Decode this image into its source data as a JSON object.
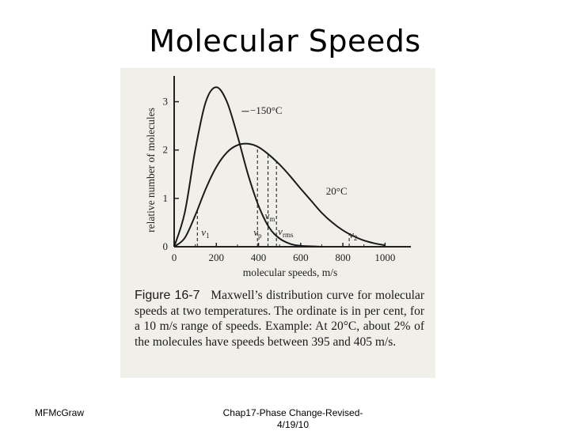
{
  "slide": {
    "title": "Molecular Speeds",
    "footer_left": "MFMcGraw",
    "footer_center": "Chap17-Phase Change-Revised-4/19/10"
  },
  "caption": {
    "figure_label": "Figure 16-7",
    "text": "Maxwell’s distribution curve for molecular speeds at two temperatures. The ordinate is in per cent, for a 10 m/s range of speeds. Example: At 20°C, about 2% of the molecules have speeds between 395 and 405 m/s."
  },
  "chart_data": {
    "type": "line",
    "title": "",
    "xlabel": "molecular speeds, m/s",
    "ylabel": "relative number of molecules",
    "xlim": [
      0,
      1100
    ],
    "ylim": [
      0,
      3.5
    ],
    "x_ticks": [
      0,
      200,
      400,
      600,
      800,
      1000
    ],
    "y_ticks": [
      0,
      1,
      2,
      3
    ],
    "series": [
      {
        "name": "−150°C",
        "x": [
          0,
          50,
          100,
          150,
          200,
          250,
          300,
          350,
          400,
          450,
          500,
          550,
          600,
          700
        ],
        "y": [
          0,
          0.7,
          2.0,
          3.0,
          3.3,
          3.0,
          2.3,
          1.5,
          0.85,
          0.4,
          0.17,
          0.06,
          0.02,
          0
        ]
      },
      {
        "name": "20°C",
        "x": [
          0,
          50,
          100,
          150,
          200,
          250,
          300,
          350,
          400,
          450,
          500,
          550,
          600,
          650,
          700,
          750,
          800,
          850,
          900,
          950,
          1000
        ],
        "y": [
          0,
          0.18,
          0.65,
          1.2,
          1.65,
          1.95,
          2.1,
          2.13,
          2.06,
          1.9,
          1.7,
          1.46,
          1.2,
          0.95,
          0.7,
          0.5,
          0.34,
          0.22,
          0.13,
          0.07,
          0.03
        ]
      }
    ],
    "markers": [
      {
        "label": "v1",
        "x": 110
      },
      {
        "label": "vp",
        "x": 395
      },
      {
        "label": "vm",
        "x": 445
      },
      {
        "label": "vrms",
        "x": 485
      },
      {
        "label": "v2",
        "x": 830
      }
    ],
    "annotations": [
      {
        "text": "−150°C",
        "series": "−150°C"
      },
      {
        "text": "20°C",
        "series": "20°C"
      }
    ]
  }
}
